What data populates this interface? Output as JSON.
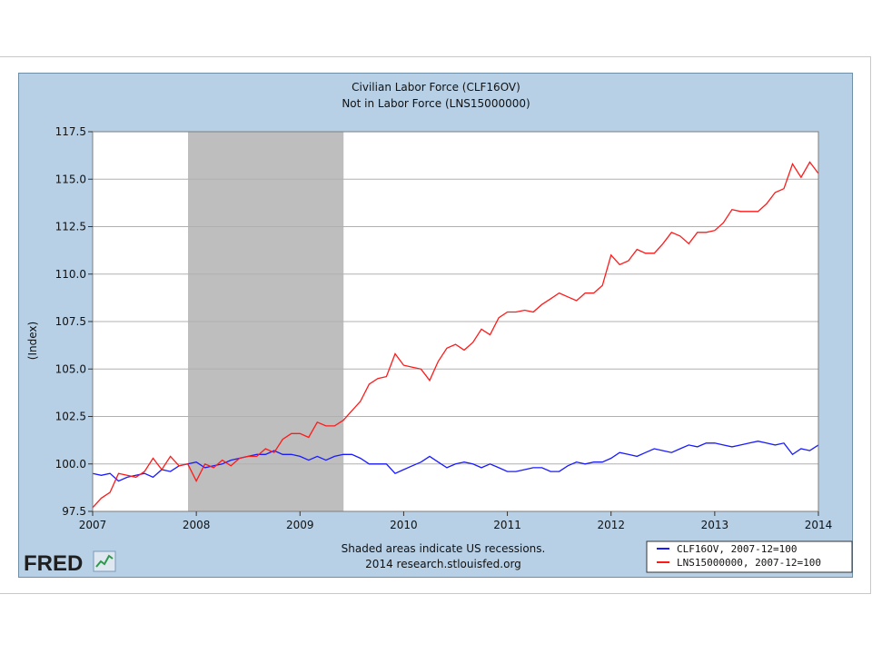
{
  "chart_data": {
    "type": "line",
    "title": "Civilian Labor Force (CLF16OV)",
    "subtitle": "Not in Labor Force (LNS15000000)",
    "ylabel": "(Index)",
    "xlabel": "",
    "xlim": [
      2007.0,
      2014.0
    ],
    "ylim": [
      97.5,
      117.5
    ],
    "x_ticks": [
      "2007",
      "2008",
      "2009",
      "2010",
      "2011",
      "2012",
      "2013",
      "2014"
    ],
    "y_ticks": [
      "97.5",
      "100.0",
      "102.5",
      "105.0",
      "107.5",
      "110.0",
      "112.5",
      "115.0",
      "117.5"
    ],
    "grid": true,
    "recession_shading": [
      [
        2007.92,
        2009.42
      ]
    ],
    "caption_line1": "Shaded areas indicate US recessions.",
    "caption_line2": "2014 research.stlouisfed.org",
    "legend_position": "bottom-right",
    "series": [
      {
        "name": "CLF16OV, 2007-12=100",
        "color": "#1a1aff",
        "x": [
          2007.0,
          2007.083,
          2007.167,
          2007.25,
          2007.333,
          2007.417,
          2007.5,
          2007.583,
          2007.667,
          2007.75,
          2007.833,
          2007.917,
          2008.0,
          2008.083,
          2008.167,
          2008.25,
          2008.333,
          2008.417,
          2008.5,
          2008.583,
          2008.667,
          2008.75,
          2008.833,
          2008.917,
          2009.0,
          2009.083,
          2009.167,
          2009.25,
          2009.333,
          2009.417,
          2009.5,
          2009.583,
          2009.667,
          2009.75,
          2009.833,
          2009.917,
          2010.0,
          2010.083,
          2010.167,
          2010.25,
          2010.333,
          2010.417,
          2010.5,
          2010.583,
          2010.667,
          2010.75,
          2010.833,
          2010.917,
          2011.0,
          2011.083,
          2011.167,
          2011.25,
          2011.333,
          2011.417,
          2011.5,
          2011.583,
          2011.667,
          2011.75,
          2011.833,
          2011.917,
          2012.0,
          2012.083,
          2012.167,
          2012.25,
          2012.333,
          2012.417,
          2012.5,
          2012.583,
          2012.667,
          2012.75,
          2012.833,
          2012.917,
          2013.0,
          2013.083,
          2013.167,
          2013.25,
          2013.333,
          2013.417,
          2013.5,
          2013.583,
          2013.667,
          2013.75,
          2013.833,
          2013.917,
          2014.0
        ],
        "values": [
          99.5,
          99.4,
          99.5,
          99.1,
          99.3,
          99.4,
          99.5,
          99.3,
          99.7,
          99.6,
          99.9,
          100.0,
          100.1,
          99.8,
          99.9,
          100.0,
          100.2,
          100.3,
          100.4,
          100.5,
          100.5,
          100.7,
          100.5,
          100.5,
          100.4,
          100.2,
          100.4,
          100.2,
          100.4,
          100.5,
          100.5,
          100.3,
          100.0,
          100.0,
          100.0,
          99.5,
          99.7,
          99.9,
          100.1,
          100.4,
          100.1,
          99.8,
          100.0,
          100.1,
          100.0,
          99.8,
          100.0,
          99.8,
          99.6,
          99.6,
          99.7,
          99.8,
          99.8,
          99.6,
          99.6,
          99.9,
          100.1,
          100.0,
          100.1,
          100.1,
          100.3,
          100.6,
          100.5,
          100.4,
          100.6,
          100.8,
          100.7,
          100.6,
          100.8,
          101.0,
          100.9,
          101.1,
          101.1,
          101.0,
          100.9,
          101.0,
          101.1,
          101.2,
          101.1,
          101.0,
          101.1,
          100.5,
          100.8,
          100.7,
          101.0
        ]
      },
      {
        "name": "LNS15000000, 2007-12=100",
        "color": "#ff1a1a",
        "x": [
          2007.0,
          2007.083,
          2007.167,
          2007.25,
          2007.333,
          2007.417,
          2007.5,
          2007.583,
          2007.667,
          2007.75,
          2007.833,
          2007.917,
          2008.0,
          2008.083,
          2008.167,
          2008.25,
          2008.333,
          2008.417,
          2008.5,
          2008.583,
          2008.667,
          2008.75,
          2008.833,
          2008.917,
          2009.0,
          2009.083,
          2009.167,
          2009.25,
          2009.333,
          2009.417,
          2009.5,
          2009.583,
          2009.667,
          2009.75,
          2009.833,
          2009.917,
          2010.0,
          2010.083,
          2010.167,
          2010.25,
          2010.333,
          2010.417,
          2010.5,
          2010.583,
          2010.667,
          2010.75,
          2010.833,
          2010.917,
          2011.0,
          2011.083,
          2011.167,
          2011.25,
          2011.333,
          2011.417,
          2011.5,
          2011.583,
          2011.667,
          2011.75,
          2011.833,
          2011.917,
          2012.0,
          2012.083,
          2012.167,
          2012.25,
          2012.333,
          2012.417,
          2012.5,
          2012.583,
          2012.667,
          2012.75,
          2012.833,
          2012.917,
          2013.0,
          2013.083,
          2013.167,
          2013.25,
          2013.333,
          2013.417,
          2013.5,
          2013.583,
          2013.667,
          2013.75,
          2013.833,
          2013.917,
          2014.0
        ],
        "values": [
          97.7,
          98.2,
          98.5,
          99.5,
          99.4,
          99.3,
          99.6,
          100.3,
          99.7,
          100.4,
          99.9,
          100.0,
          99.1,
          100.0,
          99.8,
          100.2,
          99.9,
          100.3,
          100.4,
          100.4,
          100.8,
          100.6,
          101.3,
          101.6,
          101.6,
          101.4,
          102.2,
          102.0,
          102.0,
          102.3,
          102.8,
          103.3,
          104.2,
          104.5,
          104.6,
          105.8,
          105.2,
          105.1,
          105.0,
          104.4,
          105.4,
          106.1,
          106.3,
          106.0,
          106.4,
          107.1,
          106.8,
          107.7,
          108.0,
          108.0,
          108.1,
          108.0,
          108.4,
          108.7,
          109.0,
          108.8,
          108.6,
          109.0,
          109.0,
          109.4,
          111.0,
          110.5,
          110.7,
          111.3,
          111.1,
          111.1,
          111.6,
          112.2,
          112.0,
          111.6,
          112.2,
          112.2,
          112.3,
          112.7,
          113.4,
          113.3,
          113.3,
          113.3,
          113.7,
          114.3,
          114.5,
          115.8,
          115.1,
          115.9,
          115.3
        ]
      }
    ]
  },
  "branding": {
    "logo_text": "FRED"
  }
}
